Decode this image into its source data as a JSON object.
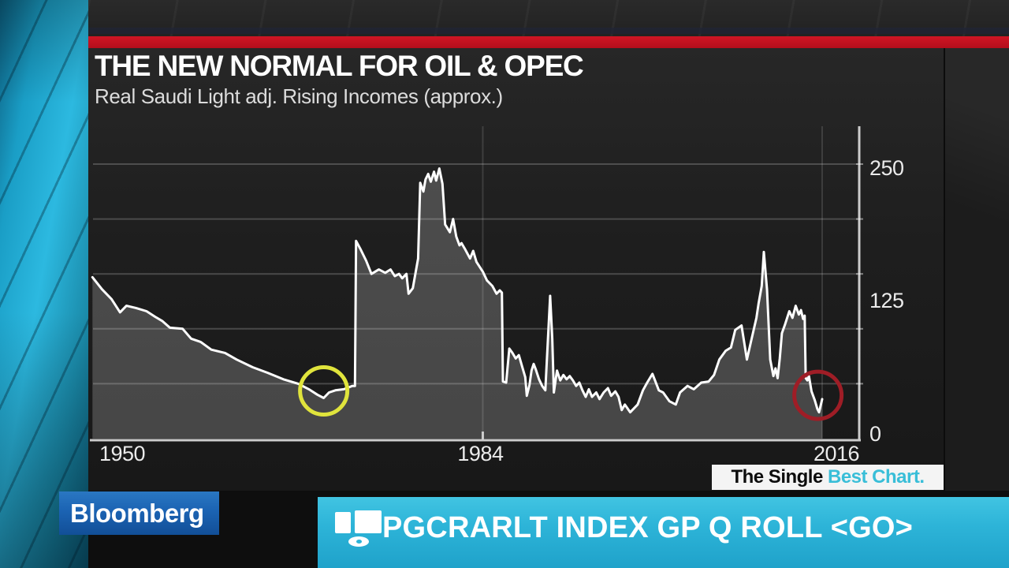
{
  "header": {
    "title": "THE NEW NORMAL FOR OIL & OPEC",
    "subtitle": "Real Saudi Light adj. Rising Incomes (approx.)"
  },
  "badge": {
    "prefix": "The Single ",
    "highlight": "Best Chart."
  },
  "logo": {
    "text": "Bloomberg"
  },
  "chyron": {
    "icon": "terminal-monitor-icon",
    "text": "PGCRARLT INDEX GP Q ROLL <GO>"
  },
  "colors": {
    "red_bar": "#c11420",
    "panel_bg": "#1e1e1e",
    "line": "#ffffff",
    "area_fill": "rgba(255,255,255,0.20)",
    "grid": "rgba(255,255,255,0.20)",
    "axis": "#cccccc",
    "chyron_cyan": "#2db4d8",
    "badge_highlight": "#39bed8",
    "logo_blue": "#1b63b3",
    "studio_teal": "#2cb9e0",
    "annotation_yellow": "#e0e43c",
    "annotation_red": "#9f1d26"
  },
  "chart_data": {
    "type": "area",
    "title": "THE NEW NORMAL FOR OIL & OPEC",
    "subtitle": "Real Saudi Light adj. Rising Incomes (approx.)",
    "xlabel": "",
    "ylabel": "",
    "x_axis": {
      "ticks": [
        1950,
        1984,
        2016
      ],
      "grid_years": [
        1984,
        2016
      ],
      "range": [
        1947,
        2016.5
      ]
    },
    "y_axis": {
      "ticks": [
        250,
        125,
        0
      ],
      "gridline_step": 50,
      "range": [
        0,
        285
      ]
    },
    "legend": "none",
    "series": [
      {
        "name": "Real Saudi Light adj. Rising Incomes (approx.)",
        "points": [
          [
            1947.2,
            147
          ],
          [
            1948.1,
            136
          ],
          [
            1949.0,
            127
          ],
          [
            1949.8,
            115
          ],
          [
            1950.4,
            121
          ],
          [
            1951.3,
            119
          ],
          [
            1952.3,
            116
          ],
          [
            1953.1,
            111
          ],
          [
            1953.8,
            107
          ],
          [
            1954.5,
            101
          ],
          [
            1955.7,
            100
          ],
          [
            1956.5,
            91
          ],
          [
            1957.4,
            88
          ],
          [
            1958.4,
            81
          ],
          [
            1959.7,
            78
          ],
          [
            1960.8,
            72
          ],
          [
            1962.3,
            65
          ],
          [
            1963.7,
            60
          ],
          [
            1965.2,
            54
          ],
          [
            1966.6,
            50
          ],
          [
            1967.6,
            45
          ],
          [
            1968.4,
            40
          ],
          [
            1969.0,
            37
          ],
          [
            1969.5,
            42
          ],
          [
            1970.1,
            44
          ],
          [
            1970.9,
            45
          ],
          [
            1971.7,
            48
          ],
          [
            1971.95,
            48
          ],
          [
            1972.05,
            180
          ],
          [
            1972.5,
            172
          ],
          [
            1973.0,
            162
          ],
          [
            1973.5,
            150
          ],
          [
            1974.2,
            154
          ],
          [
            1974.8,
            151
          ],
          [
            1975.3,
            154
          ],
          [
            1975.7,
            148
          ],
          [
            1976.1,
            150
          ],
          [
            1976.4,
            146
          ],
          [
            1976.8,
            150
          ],
          [
            1977.0,
            132
          ],
          [
            1977.4,
            137
          ],
          [
            1977.9,
            164
          ],
          [
            1978.1,
            233
          ],
          [
            1978.4,
            225
          ],
          [
            1978.6,
            236
          ],
          [
            1978.85,
            241
          ],
          [
            1979.1,
            234
          ],
          [
            1979.4,
            243
          ],
          [
            1979.6,
            235
          ],
          [
            1979.9,
            246
          ],
          [
            1980.2,
            232
          ],
          [
            1980.45,
            195
          ],
          [
            1980.9,
            188
          ],
          [
            1981.2,
            200
          ],
          [
            1981.5,
            184
          ],
          [
            1981.8,
            176
          ],
          [
            1982.0,
            178
          ],
          [
            1982.3,
            173
          ],
          [
            1982.8,
            164
          ],
          [
            1983.1,
            171
          ],
          [
            1983.4,
            161
          ],
          [
            1984.0,
            152
          ],
          [
            1984.4,
            144
          ],
          [
            1984.9,
            139
          ],
          [
            1985.3,
            132
          ],
          [
            1985.6,
            135
          ],
          [
            1985.8,
            133
          ],
          [
            1985.9,
            52
          ],
          [
            1986.2,
            51
          ],
          [
            1986.5,
            82
          ],
          [
            1986.8,
            78
          ],
          [
            1987.1,
            73
          ],
          [
            1987.4,
            76
          ],
          [
            1987.7,
            66
          ],
          [
            1988.0,
            56
          ],
          [
            1988.15,
            39
          ],
          [
            1988.4,
            49
          ],
          [
            1988.6,
            62
          ],
          [
            1988.8,
            68
          ],
          [
            1989.0,
            63
          ],
          [
            1989.3,
            54
          ],
          [
            1989.6,
            48
          ],
          [
            1989.9,
            44
          ],
          [
            1990.35,
            130
          ],
          [
            1990.55,
            91
          ],
          [
            1990.7,
            42
          ],
          [
            1991.0,
            62
          ],
          [
            1991.3,
            53
          ],
          [
            1991.6,
            58
          ],
          [
            1991.9,
            54
          ],
          [
            1992.2,
            57
          ],
          [
            1992.5,
            53
          ],
          [
            1992.8,
            48
          ],
          [
            1993.1,
            51
          ],
          [
            1993.4,
            44
          ],
          [
            1993.7,
            38
          ],
          [
            1994.0,
            45
          ],
          [
            1994.3,
            38
          ],
          [
            1994.7,
            42
          ],
          [
            1995.0,
            36
          ],
          [
            1995.4,
            42
          ],
          [
            1995.8,
            46
          ],
          [
            1996.1,
            39
          ],
          [
            1996.5,
            43
          ],
          [
            1996.8,
            38
          ],
          [
            1997.1,
            26
          ],
          [
            1997.4,
            31
          ],
          [
            1997.9,
            24
          ],
          [
            1998.6,
            31
          ],
          [
            1999.1,
            44
          ],
          [
            1999.5,
            51
          ],
          [
            2000.0,
            59
          ],
          [
            2000.6,
            44
          ],
          [
            2001.0,
            42
          ],
          [
            2001.6,
            34
          ],
          [
            2002.2,
            31
          ],
          [
            2002.6,
            42
          ],
          [
            2003.3,
            48
          ],
          [
            2003.9,
            45
          ],
          [
            2004.6,
            51
          ],
          [
            2005.3,
            52
          ],
          [
            2005.8,
            58
          ],
          [
            2006.3,
            72
          ],
          [
            2006.9,
            80
          ],
          [
            2007.4,
            83
          ],
          [
            2007.8,
            99
          ],
          [
            2008.4,
            103
          ],
          [
            2008.9,
            72
          ],
          [
            2009.3,
            89
          ],
          [
            2009.8,
            110
          ],
          [
            2010.0,
            123
          ],
          [
            2010.3,
            139
          ],
          [
            2010.5,
            170
          ],
          [
            2010.8,
            136
          ],
          [
            2011.1,
            72
          ],
          [
            2011.4,
            57
          ],
          [
            2011.6,
            64
          ],
          [
            2011.8,
            55
          ],
          [
            2012.0,
            73
          ],
          [
            2012.2,
            96
          ],
          [
            2012.5,
            104
          ],
          [
            2012.9,
            116
          ],
          [
            2013.2,
            110
          ],
          [
            2013.5,
            121
          ],
          [
            2013.8,
            113
          ],
          [
            2014.0,
            117
          ],
          [
            2014.2,
            109
          ],
          [
            2014.35,
            112
          ],
          [
            2014.45,
            55
          ],
          [
            2014.6,
            53
          ],
          [
            2014.75,
            57
          ],
          [
            2015.0,
            43
          ],
          [
            2015.3,
            35
          ],
          [
            2015.55,
            27
          ],
          [
            2015.7,
            24
          ],
          [
            2015.9,
            32
          ],
          [
            2016.0,
            36
          ]
        ]
      }
    ],
    "annotations": [
      {
        "type": "circle",
        "year": 1969.0,
        "value": 37,
        "color": "#e0e43c"
      },
      {
        "type": "circle",
        "year": 2015.6,
        "value": 33,
        "color": "#9f1d26"
      }
    ]
  }
}
